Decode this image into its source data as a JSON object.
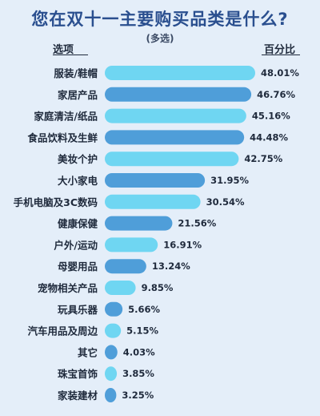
{
  "title": "您在双十一主要购买品类是什么?",
  "subtitle": "(多选)",
  "col_left": "选项",
  "col_right": "百分比",
  "colors": {
    "title": "#2a4f8f",
    "bar_dark": "#4f9ed9",
    "bar_light": "#6fd6f2",
    "background": "#e4eef9"
  },
  "chart_data": {
    "type": "bar",
    "orientation": "horizontal",
    "title": "您在双十一主要购买品类是什么?",
    "subtitle": "(多选)",
    "categories": [
      "服装/鞋帽",
      "家居产品",
      "家庭清洁/纸品",
      "食品饮料及生鲜",
      "美妆个护",
      "大小家电",
      "手机电脑及3C数码",
      "健康保健",
      "户外/运动",
      "母婴用品",
      "宠物相关产品",
      "玩具乐器",
      "汽车用品及周边",
      "其它",
      "珠宝首饰",
      "家装建材"
    ],
    "values": [
      48.01,
      46.76,
      45.16,
      44.48,
      42.75,
      31.95,
      30.54,
      21.56,
      16.91,
      13.24,
      9.85,
      5.66,
      5.15,
      4.03,
      3.85,
      3.25
    ],
    "value_labels": [
      "48.01%",
      "46.76%",
      "45.16%",
      "44.48%",
      "42.75%",
      "31.95%",
      "30.54%",
      "21.56%",
      "16.91%",
      "13.24%",
      "9.85%",
      "5.66%",
      "5.15%",
      "4.03%",
      "3.85%",
      "3.25%"
    ],
    "unit": "%",
    "xlim": [
      0,
      50
    ],
    "grid": false,
    "legend": "none"
  }
}
